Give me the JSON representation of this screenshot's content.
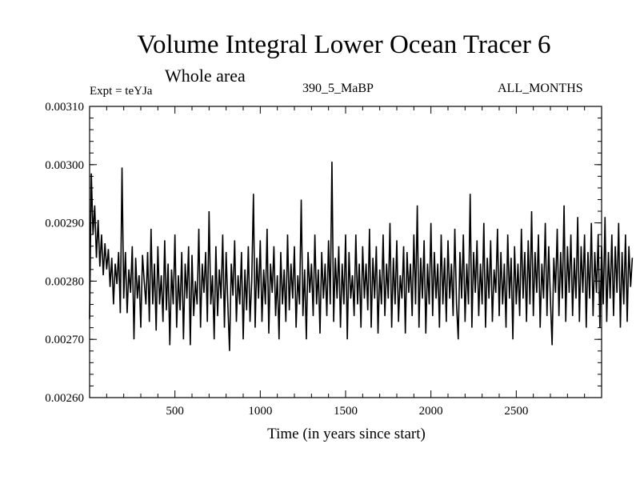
{
  "chart_data": {
    "type": "line",
    "title": "Volume Integral Lower Ocean Tracer 6",
    "subtitle": "Whole area",
    "experiment_label": "Expt = teYJa",
    "run_label": "390_5_MaBP",
    "period_label": "ALL_MONTHS",
    "xlabel": "Time (in years since start)",
    "ylabel": "",
    "xlim": [
      0,
      3000
    ],
    "ylim": [
      0.0026,
      0.0031
    ],
    "xticks": [
      500,
      1000,
      1500,
      2000,
      2500
    ],
    "xtick_labels": [
      "500",
      "1000",
      "1500",
      "2000",
      "2500"
    ],
    "yticks": [
      0.0026,
      0.0027,
      0.0028,
      0.0029,
      0.003,
      0.0031
    ],
    "ytick_labels": [
      "0.00260",
      "0.00270",
      "0.00280",
      "0.00290",
      "0.00300",
      "0.00310"
    ],
    "series": [
      {
        "name": "Lower Ocean Tracer 6",
        "color": "#000000",
        "x_start": 0,
        "x_step": 10,
        "values": [
          0.002735,
          0.002985,
          0.00288,
          0.00293,
          0.00284,
          0.002905,
          0.002825,
          0.00288,
          0.00281,
          0.002865,
          0.00282,
          0.002855,
          0.00279,
          0.00284,
          0.00276,
          0.00283,
          0.002795,
          0.00285,
          0.002745,
          0.002995,
          0.00277,
          0.00285,
          0.002745,
          0.00282,
          0.00278,
          0.00286,
          0.0027,
          0.00284,
          0.00277,
          0.00281,
          0.00272,
          0.002845,
          0.0028,
          0.00276,
          0.00285,
          0.00273,
          0.00289,
          0.00276,
          0.00283,
          0.002715,
          0.00286,
          0.00276,
          0.00281,
          0.00273,
          0.00287,
          0.00275,
          0.00283,
          0.00269,
          0.00282,
          0.00276,
          0.00288,
          0.00272,
          0.00281,
          0.00275,
          0.00285,
          0.0027,
          0.00283,
          0.00277,
          0.00286,
          0.00269,
          0.002845,
          0.00274,
          0.0028,
          0.00276,
          0.00289,
          0.00272,
          0.00283,
          0.00278,
          0.00285,
          0.00273,
          0.00292,
          0.00276,
          0.00281,
          0.0027,
          0.00286,
          0.00274,
          0.00282,
          0.00277,
          0.00288,
          0.00272,
          0.00285,
          0.00276,
          0.00268,
          0.00283,
          0.002775,
          0.00287,
          0.00273,
          0.00281,
          0.00276,
          0.00285,
          0.0027,
          0.00282,
          0.00275,
          0.00286,
          0.00273,
          0.0028,
          0.00295,
          0.00272,
          0.00284,
          0.00277,
          0.00287,
          0.00273,
          0.00282,
          0.00276,
          0.00289,
          0.00271,
          0.00283,
          0.00278,
          0.00286,
          0.00274,
          0.00281,
          0.0027,
          0.00285,
          0.00276,
          0.00282,
          0.00273,
          0.00288,
          0.00275,
          0.00283,
          0.00277,
          0.00286,
          0.00272,
          0.00281,
          0.00276,
          0.00294,
          0.00274,
          0.00282,
          0.0027,
          0.00285,
          0.00278,
          0.00283,
          0.00274,
          0.00288,
          0.00276,
          0.00282,
          0.00271,
          0.00285,
          0.00277,
          0.00283,
          0.00274,
          0.00287,
          0.00276,
          0.003005,
          0.00273,
          0.00284,
          0.00277,
          0.00286,
          0.00272,
          0.00283,
          0.00276,
          0.00288,
          0.0027,
          0.00285,
          0.00277,
          0.00281,
          0.00274,
          0.00288,
          0.00276,
          0.00283,
          0.00272,
          0.00286,
          0.00277,
          0.00283,
          0.00275,
          0.00289,
          0.00272,
          0.00284,
          0.00277,
          0.00286,
          0.00271,
          0.00282,
          0.00276,
          0.00288,
          0.00274,
          0.00283,
          0.00277,
          0.0029,
          0.00272,
          0.00284,
          0.00276,
          0.00287,
          0.00273,
          0.00281,
          0.00277,
          0.00286,
          0.00271,
          0.00285,
          0.00278,
          0.00283,
          0.00274,
          0.00288,
          0.00276,
          0.00293,
          0.00272,
          0.00284,
          0.00277,
          0.00287,
          0.00271,
          0.00283,
          0.00276,
          0.0029,
          0.00274,
          0.00285,
          0.00277,
          0.00283,
          0.00272,
          0.00288,
          0.00276,
          0.00284,
          0.00273,
          0.00287,
          0.00277,
          0.00283,
          0.00274,
          0.00289,
          0.00276,
          0.0027,
          0.00285,
          0.00277,
          0.00288,
          0.00273,
          0.00283,
          0.00276,
          0.00295,
          0.00272,
          0.00285,
          0.00278,
          0.00287,
          0.00274,
          0.00283,
          0.00276,
          0.0029,
          0.00272,
          0.00284,
          0.00277,
          0.00287,
          0.00273,
          0.00282,
          0.00278,
          0.00289,
          0.00274,
          0.00285,
          0.00276,
          0.00283,
          0.00272,
          0.00288,
          0.00277,
          0.00284,
          0.0027,
          0.00286,
          0.00276,
          0.00283,
          0.00274,
          0.00289,
          0.00277,
          0.00285,
          0.00273,
          0.00287,
          0.00276,
          0.00292,
          0.00274,
          0.00285,
          0.00278,
          0.00288,
          0.00272,
          0.00283,
          0.00277,
          0.0029,
          0.00274,
          0.00286,
          0.00277,
          0.00269,
          0.00284,
          0.00278,
          0.00289,
          0.00274,
          0.00285,
          0.00277,
          0.00293,
          0.00273,
          0.00286,
          0.00278,
          0.00288,
          0.00274,
          0.00284,
          0.00277,
          0.00291,
          0.00273,
          0.00286,
          0.00278,
          0.00288,
          0.00272,
          0.00285,
          0.00277,
          0.0029,
          0.00274,
          0.00285,
          0.00278,
          0.00288,
          0.00272,
          0.00286,
          0.00276,
          0.00291,
          0.00273,
          0.00285,
          0.00277,
          0.00288,
          0.00274,
          0.00286,
          0.00278,
          0.0029,
          0.00272,
          0.00285,
          0.00276,
          0.00288,
          0.00273,
          0.00286,
          0.00279,
          0.00284
        ]
      }
    ]
  }
}
